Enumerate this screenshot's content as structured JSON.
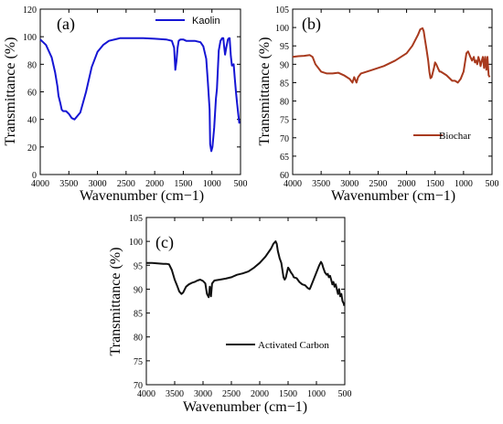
{
  "chart_data": [
    {
      "type": "line",
      "panel": "(a)",
      "xlabel": "Wavenumber (cm−1)",
      "ylabel": "Transmittance (%)",
      "xlim": [
        4000,
        500
      ],
      "ylim": [
        0,
        120
      ],
      "xticks": [
        4000,
        3500,
        3000,
        2500,
        2000,
        1500,
        1000,
        500
      ],
      "yticks": [
        0,
        20,
        40,
        60,
        80,
        100,
        120
      ],
      "xtick_labels": [
        "4000",
        "3500",
        "3000",
        "2500",
        "2000",
        "1500",
        "1000",
        "500"
      ],
      "ytick_labels": [
        "0",
        "20",
        "40",
        "60",
        "80",
        "100",
        "120"
      ],
      "legend_position": "top-right",
      "series": [
        {
          "name": "Kaolin",
          "color": "#1515d4",
          "x": [
            4000,
            3900,
            3800,
            3740,
            3700,
            3680,
            3650,
            3625,
            3600,
            3550,
            3500,
            3450,
            3400,
            3300,
            3200,
            3100,
            3000,
            2900,
            2800,
            2600,
            2400,
            2200,
            2000,
            1800,
            1700,
            1660,
            1640,
            1620,
            1600,
            1580,
            1550,
            1500,
            1450,
            1400,
            1300,
            1200,
            1150,
            1100,
            1070,
            1040,
            1030,
            1010,
            990,
            960,
            930,
            912,
            880,
            850,
            820,
            800,
            790,
            770,
            750,
            720,
            700,
            690,
            670,
            650,
            620,
            600,
            580,
            560,
            540,
            520
          ],
          "y": [
            98,
            94,
            85,
            74,
            64,
            57,
            52,
            47,
            46,
            46,
            44,
            41,
            40,
            45,
            60,
            78,
            89,
            94,
            97,
            99,
            99,
            99,
            98.5,
            98,
            97,
            92,
            76,
            82,
            92,
            97,
            98,
            98,
            97,
            97,
            97,
            96,
            93,
            84,
            67,
            47,
            22,
            17,
            20,
            34,
            55,
            62,
            90,
            97,
            99,
            99,
            94,
            87,
            92,
            98,
            99,
            99,
            86,
            79,
            80,
            70,
            60,
            52,
            44,
            37
          ]
        }
      ]
    },
    {
      "type": "line",
      "panel": "(b)",
      "xlabel": "Wavenumber (cm−1)",
      "ylabel": "Transmittance (%)",
      "xlim": [
        4000,
        500
      ],
      "ylim": [
        60,
        105
      ],
      "xticks": [
        4000,
        3500,
        3000,
        2500,
        2000,
        1500,
        1000,
        500
      ],
      "yticks": [
        60,
        65,
        70,
        75,
        80,
        85,
        90,
        95,
        100,
        105
      ],
      "xtick_labels": [
        "4000",
        "3500",
        "3000",
        "2500",
        "2000",
        "1500",
        "1000",
        "500"
      ],
      "ytick_labels": [
        "60",
        "65",
        "70",
        "75",
        "80",
        "85",
        "90",
        "95",
        "100",
        "105"
      ],
      "legend_position": "lower-right",
      "series": [
        {
          "name": "Biochar",
          "color": "#a83a1e",
          "x": [
            4000,
            3900,
            3800,
            3700,
            3650,
            3600,
            3500,
            3400,
            3300,
            3200,
            3100,
            3050,
            3000,
            2950,
            2920,
            2880,
            2850,
            2800,
            2700,
            2600,
            2400,
            2200,
            2000,
            1900,
            1800,
            1760,
            1720,
            1700,
            1680,
            1650,
            1620,
            1600,
            1580,
            1560,
            1520,
            1500,
            1480,
            1450,
            1420,
            1400,
            1350,
            1300,
            1200,
            1150,
            1100,
            1050,
            1000,
            950,
            920,
            880,
            850,
            820,
            800,
            780,
            760,
            740,
            720,
            700,
            680,
            660,
            640,
            620,
            600,
            580,
            560,
            540
          ],
          "y": [
            92,
            92.2,
            92.3,
            92.5,
            92,
            90,
            88,
            87.5,
            87.5,
            87.7,
            87,
            86.5,
            86,
            85,
            86.5,
            85,
            86.5,
            87.5,
            88,
            88.5,
            89.5,
            91,
            93,
            95,
            98,
            99.5,
            99.8,
            99,
            97,
            94,
            91,
            88,
            86.2,
            86.5,
            89,
            90.5,
            90,
            89,
            88,
            88,
            87.5,
            87,
            85.5,
            85.5,
            85,
            86,
            88,
            93,
            93.5,
            92,
            91,
            92,
            90.5,
            91,
            90,
            92,
            91,
            89.5,
            91,
            92,
            89,
            92,
            88.5,
            92,
            87,
            86.5
          ]
        }
      ]
    },
    {
      "type": "line",
      "panel": "(c)",
      "xlabel": "Wavenumber (cm−1)",
      "ylabel": "Transmittance (%)",
      "xlim": [
        4000,
        500
      ],
      "ylim": [
        70,
        105
      ],
      "xticks": [
        4000,
        3500,
        3000,
        2500,
        2000,
        1500,
        1000,
        500
      ],
      "yticks": [
        70,
        75,
        80,
        85,
        90,
        95,
        100,
        105
      ],
      "xtick_labels": [
        "4000",
        "3500",
        "3000",
        "2500",
        "2000",
        "1500",
        "1000",
        "500"
      ],
      "ytick_labels": [
        "70",
        "75",
        "80",
        "85",
        "90",
        "95",
        "100",
        "105"
      ],
      "legend_position": "center-right",
      "series": [
        {
          "name": "Activated Carbon",
          "color": "#111111",
          "x": [
            4000,
            3900,
            3800,
            3700,
            3650,
            3600,
            3550,
            3500,
            3450,
            3420,
            3380,
            3350,
            3300,
            3250,
            3200,
            3150,
            3100,
            3050,
            3000,
            2960,
            2930,
            2900,
            2880,
            2860,
            2840,
            2800,
            2700,
            2600,
            2500,
            2400,
            2300,
            2200,
            2100,
            2000,
            1900,
            1800,
            1760,
            1720,
            1700,
            1680,
            1650,
            1620,
            1600,
            1580,
            1560,
            1540,
            1520,
            1500,
            1480,
            1450,
            1420,
            1400,
            1350,
            1300,
            1250,
            1200,
            1150,
            1120,
            1100,
            1050,
            1000,
            950,
            920,
            900,
            880,
            850,
            820,
            800,
            780,
            760,
            740,
            720,
            700,
            680,
            660,
            640,
            620,
            600,
            580,
            560,
            540,
            520,
            510
          ],
          "y": [
            95.5,
            95.5,
            95.4,
            95.3,
            95.3,
            95.2,
            94,
            92,
            90.5,
            89.5,
            89,
            89.3,
            90.5,
            91,
            91.3,
            91.5,
            91.8,
            92,
            91.7,
            91.2,
            89,
            88.3,
            90.5,
            88.5,
            91.2,
            91.8,
            92,
            92.2,
            92.5,
            93,
            93.3,
            93.7,
            94.5,
            95.5,
            96.8,
            98.5,
            99.5,
            100,
            99.5,
            98,
            96.5,
            95.5,
            94,
            92.5,
            92,
            92.4,
            93.5,
            94.5,
            94.2,
            93.5,
            93,
            92.5,
            92.3,
            91.5,
            91,
            90.8,
            90.2,
            90,
            90.5,
            92,
            93.5,
            95,
            95.7,
            95.3,
            94.5,
            93.5,
            93,
            93.2,
            92.5,
            92.8,
            92,
            91,
            91.5,
            90.5,
            91,
            90,
            89,
            90,
            88.5,
            89,
            87.5,
            87,
            86.5
          ]
        }
      ]
    }
  ]
}
